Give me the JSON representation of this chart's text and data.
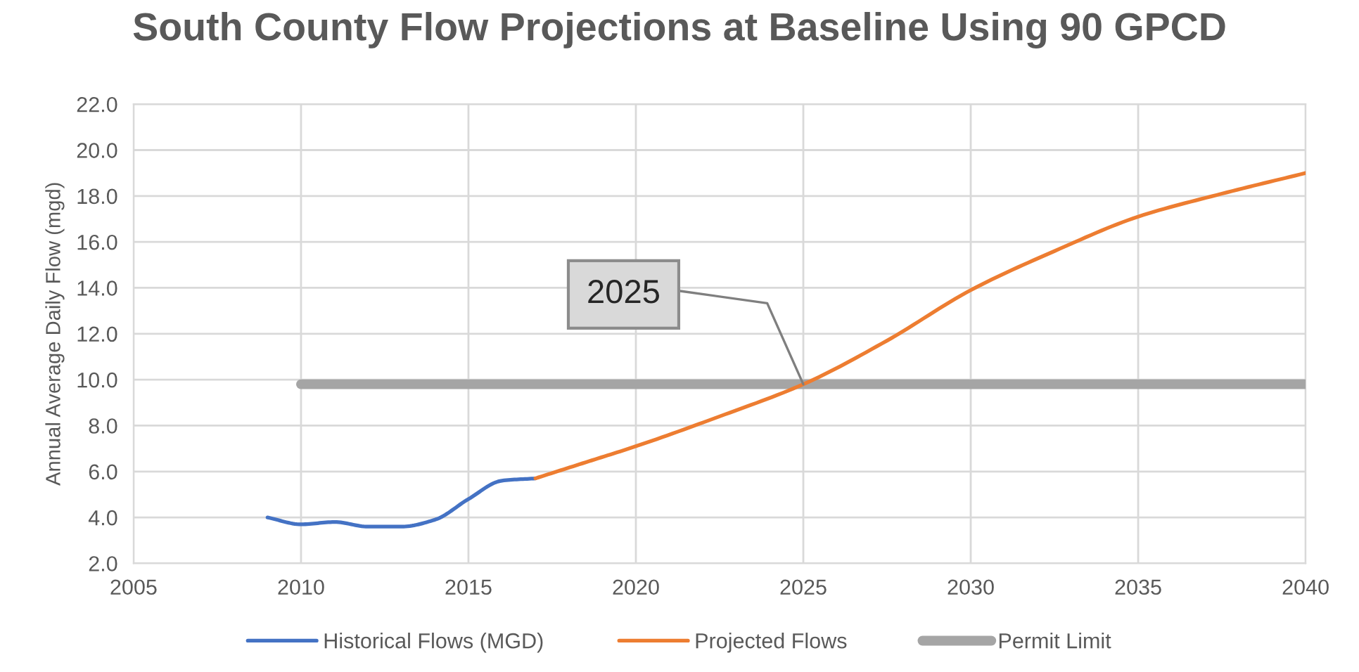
{
  "chart_data": {
    "type": "line",
    "title": "South County Flow Projections at Baseline Using 90 GPCD",
    "ylabel": "Annual Average Daily Flow (mgd)",
    "series": [
      {
        "name": "Historical Flows (MGD)",
        "color": "#4472c4",
        "x": [
          2009,
          2010,
          2011,
          2012,
          2013,
          2014,
          2015,
          2016,
          2017
        ],
        "values": [
          4.0,
          3.7,
          3.8,
          3.6,
          3.6,
          3.9,
          4.8,
          5.6,
          5.7
        ]
      },
      {
        "name": "Projected Flows",
        "color": "#ed7d31",
        "x": [
          2017,
          2018.5,
          2020,
          2022.5,
          2025,
          2027.5,
          2030,
          2032.5,
          2035,
          2037.5,
          2040
        ],
        "values": [
          5.7,
          6.4,
          7.1,
          8.4,
          9.8,
          11.7,
          13.9,
          15.6,
          17.1,
          18.1,
          19.0
        ]
      },
      {
        "name": "Permit Limit",
        "color": "#a5a5a5",
        "x": [
          2010,
          2040
        ],
        "values": [
          9.8,
          9.8
        ]
      }
    ],
    "annotations": [
      {
        "text": "2025",
        "x": 2025,
        "y": 9.8
      }
    ],
    "xlim": [
      2005,
      2040
    ],
    "xticks": [
      2005,
      2010,
      2015,
      2020,
      2025,
      2030,
      2035,
      2040
    ],
    "ylim": [
      2,
      22
    ],
    "yticks": [
      {
        "value": 2,
        "label": "2.0"
      },
      {
        "value": 4,
        "label": "4.0"
      },
      {
        "value": 6,
        "label": "6.0"
      },
      {
        "value": 8,
        "label": "8.0"
      },
      {
        "value": 10,
        "label": "10.0"
      },
      {
        "value": 12,
        "label": "12.0"
      },
      {
        "value": 14,
        "label": "14.0"
      },
      {
        "value": 16,
        "label": "16.0"
      },
      {
        "value": 18,
        "label": "18.0"
      },
      {
        "value": 20,
        "label": "20.0"
      },
      {
        "value": 22,
        "label": "22.0"
      }
    ],
    "grid": true,
    "legend": "bottom"
  }
}
